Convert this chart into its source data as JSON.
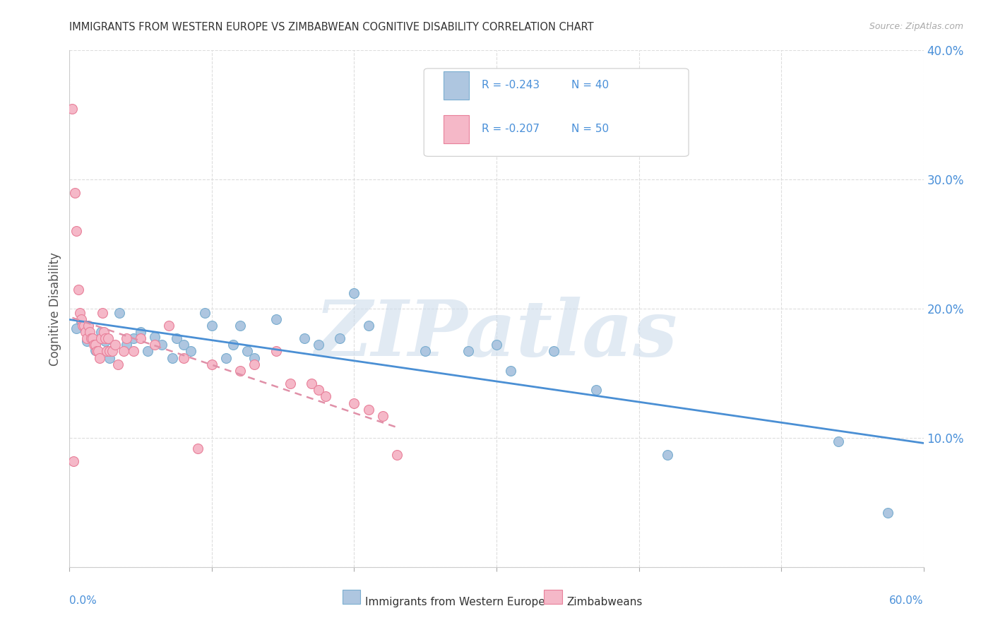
{
  "title": "IMMIGRANTS FROM WESTERN EUROPE VS ZIMBABWEAN COGNITIVE DISABILITY CORRELATION CHART",
  "source": "Source: ZipAtlas.com",
  "ylabel": "Cognitive Disability",
  "x_min": 0.0,
  "x_max": 0.6,
  "y_min": 0.0,
  "y_max": 0.4,
  "y_ticks": [
    0.0,
    0.1,
    0.2,
    0.3,
    0.4
  ],
  "legend1_r": "-0.243",
  "legend1_n": "40",
  "legend2_r": "-0.207",
  "legend2_n": "50",
  "series1_label": "Immigrants from Western Europe",
  "series2_label": "Zimbabweans",
  "watermark": "ZIPatlas",
  "blue_scatter_color": "#aec6e0",
  "blue_edge_color": "#7aaed0",
  "pink_scatter_color": "#f5b8c8",
  "pink_edge_color": "#e8809a",
  "blue_line_color": "#4a8fd4",
  "pink_line_color": "#e090a8",
  "axis_tick_color": "#4a90d9",
  "legend_text_color": "#4a90d9",
  "watermark_color": "#cddcec",
  "grid_color": "#dddddd",
  "blue_scatter": [
    [
      0.005,
      0.185
    ],
    [
      0.008,
      0.19
    ],
    [
      0.012,
      0.175
    ],
    [
      0.018,
      0.168
    ],
    [
      0.022,
      0.182
    ],
    [
      0.025,
      0.175
    ],
    [
      0.028,
      0.162
    ],
    [
      0.035,
      0.197
    ],
    [
      0.04,
      0.172
    ],
    [
      0.045,
      0.177
    ],
    [
      0.05,
      0.182
    ],
    [
      0.055,
      0.167
    ],
    [
      0.06,
      0.178
    ],
    [
      0.065,
      0.172
    ],
    [
      0.072,
      0.162
    ],
    [
      0.075,
      0.177
    ],
    [
      0.08,
      0.172
    ],
    [
      0.085,
      0.167
    ],
    [
      0.095,
      0.197
    ],
    [
      0.1,
      0.187
    ],
    [
      0.11,
      0.162
    ],
    [
      0.115,
      0.172
    ],
    [
      0.12,
      0.187
    ],
    [
      0.125,
      0.167
    ],
    [
      0.13,
      0.162
    ],
    [
      0.145,
      0.192
    ],
    [
      0.165,
      0.177
    ],
    [
      0.175,
      0.172
    ],
    [
      0.19,
      0.177
    ],
    [
      0.2,
      0.212
    ],
    [
      0.21,
      0.187
    ],
    [
      0.25,
      0.167
    ],
    [
      0.28,
      0.167
    ],
    [
      0.3,
      0.172
    ],
    [
      0.31,
      0.152
    ],
    [
      0.34,
      0.167
    ],
    [
      0.37,
      0.137
    ],
    [
      0.42,
      0.087
    ],
    [
      0.54,
      0.097
    ],
    [
      0.575,
      0.042
    ]
  ],
  "pink_scatter": [
    [
      0.002,
      0.355
    ],
    [
      0.004,
      0.29
    ],
    [
      0.005,
      0.26
    ],
    [
      0.006,
      0.215
    ],
    [
      0.007,
      0.197
    ],
    [
      0.008,
      0.192
    ],
    [
      0.009,
      0.187
    ],
    [
      0.01,
      0.187
    ],
    [
      0.011,
      0.182
    ],
    [
      0.012,
      0.177
    ],
    [
      0.013,
      0.187
    ],
    [
      0.014,
      0.182
    ],
    [
      0.015,
      0.177
    ],
    [
      0.016,
      0.177
    ],
    [
      0.017,
      0.172
    ],
    [
      0.018,
      0.172
    ],
    [
      0.019,
      0.167
    ],
    [
      0.02,
      0.167
    ],
    [
      0.021,
      0.162
    ],
    [
      0.022,
      0.177
    ],
    [
      0.023,
      0.197
    ],
    [
      0.024,
      0.182
    ],
    [
      0.025,
      0.177
    ],
    [
      0.026,
      0.167
    ],
    [
      0.027,
      0.177
    ],
    [
      0.028,
      0.167
    ],
    [
      0.03,
      0.167
    ],
    [
      0.032,
      0.172
    ],
    [
      0.034,
      0.157
    ],
    [
      0.038,
      0.167
    ],
    [
      0.04,
      0.177
    ],
    [
      0.045,
      0.167
    ],
    [
      0.05,
      0.177
    ],
    [
      0.06,
      0.172
    ],
    [
      0.07,
      0.187
    ],
    [
      0.08,
      0.162
    ],
    [
      0.09,
      0.092
    ],
    [
      0.1,
      0.157
    ],
    [
      0.12,
      0.152
    ],
    [
      0.13,
      0.157
    ],
    [
      0.145,
      0.167
    ],
    [
      0.155,
      0.142
    ],
    [
      0.17,
      0.142
    ],
    [
      0.175,
      0.137
    ],
    [
      0.18,
      0.132
    ],
    [
      0.2,
      0.127
    ],
    [
      0.21,
      0.122
    ],
    [
      0.22,
      0.117
    ],
    [
      0.23,
      0.087
    ],
    [
      0.003,
      0.082
    ]
  ]
}
